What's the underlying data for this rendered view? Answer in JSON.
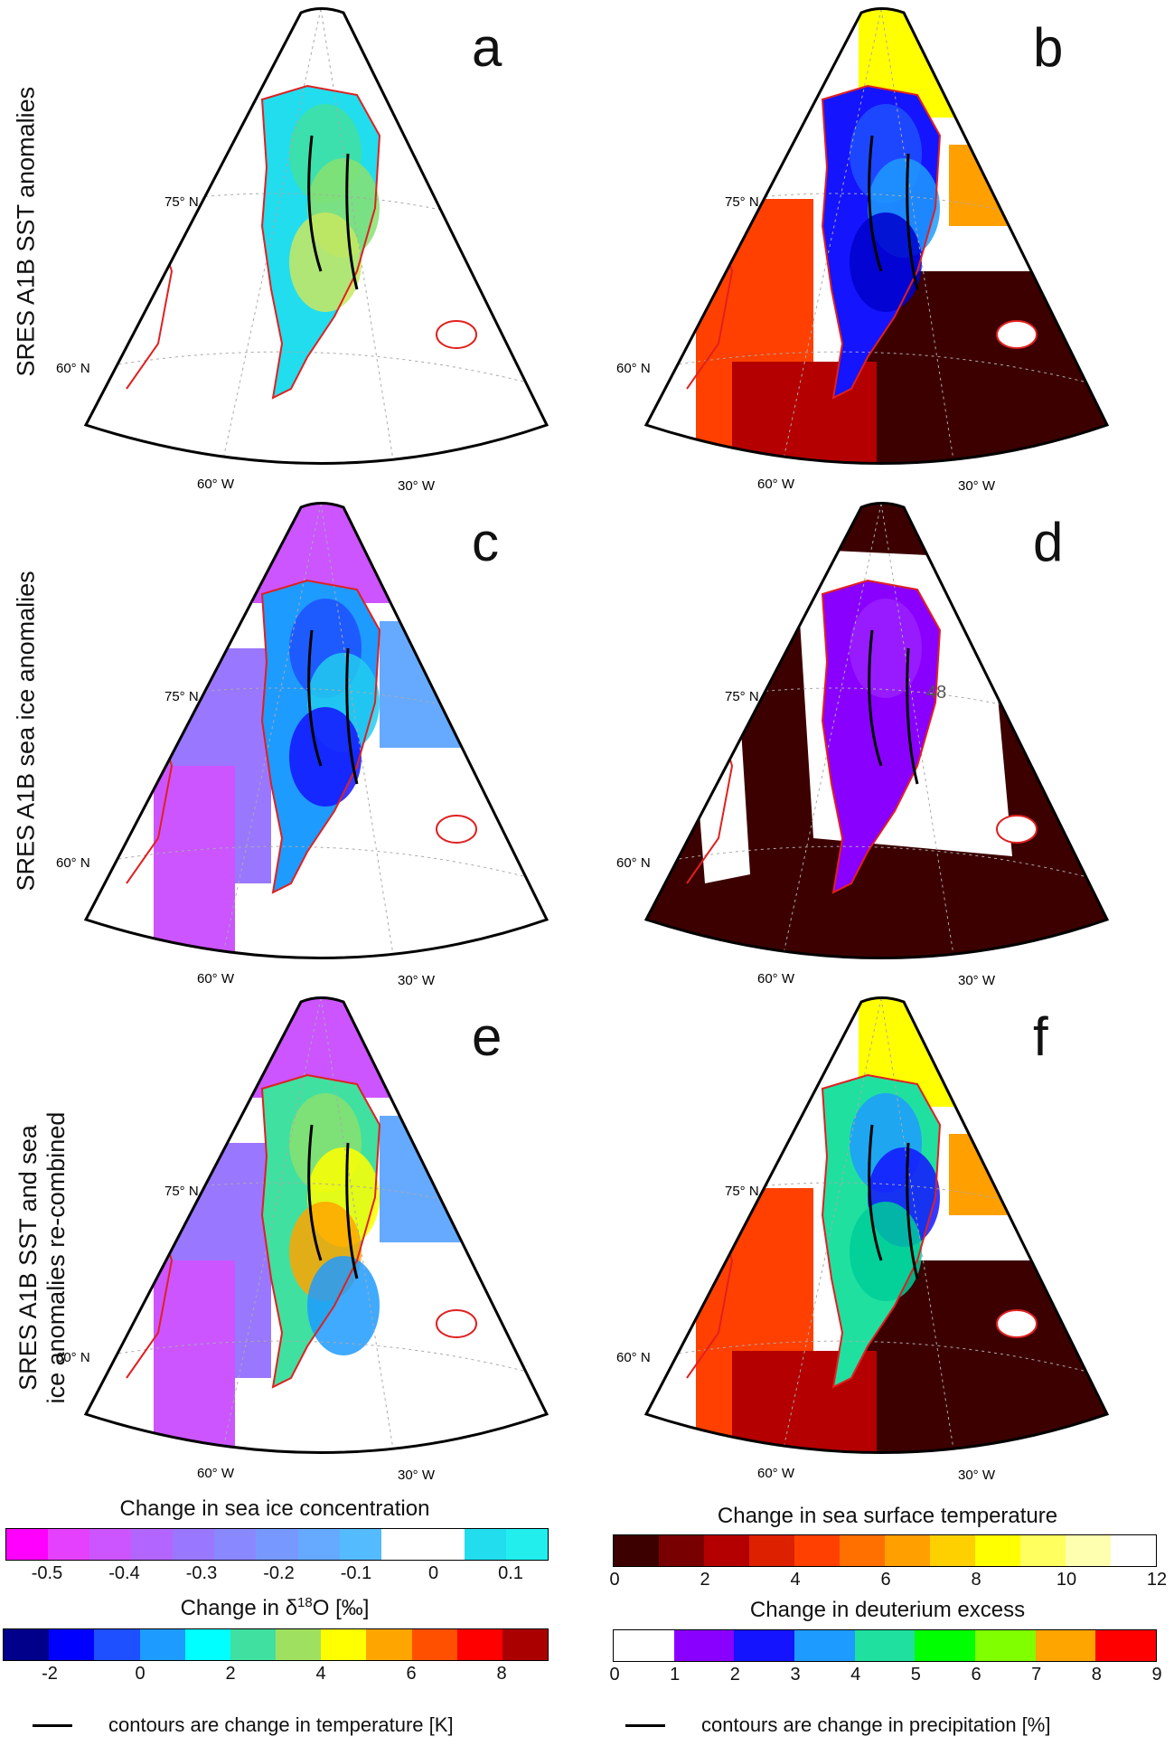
{
  "figure": {
    "row_labels": [
      "SRES A1B SST anomalies",
      "SRES A1B sea ice anomalies",
      [
        "SRES A1B SST and sea",
        "ice anomalies re-combined"
      ]
    ],
    "panels": [
      {
        "letter": "a",
        "field": "d18O",
        "lat_labels": [
          "75° N",
          "60° N"
        ],
        "lon_labels": [
          "60° W",
          "30° W"
        ]
      },
      {
        "letter": "b",
        "field": "dexcess_sst",
        "lat_labels": [
          "75° N",
          "60° N"
        ],
        "lon_labels": [
          "60° W",
          "30° W"
        ]
      },
      {
        "letter": "c",
        "field": "d18O_seaice",
        "lat_labels": [
          "75° N",
          "60° N"
        ],
        "lon_labels": [
          "60° W",
          "30° W"
        ]
      },
      {
        "letter": "d",
        "field": "dexcess_seaice",
        "lat_labels": [
          "75° N",
          "60° N"
        ],
        "lon_labels": [
          "60° W",
          "30° W"
        ],
        "contour_label": "48"
      },
      {
        "letter": "e",
        "field": "d18O_combined",
        "lat_labels": [
          "75° N",
          "60° N"
        ],
        "lon_labels": [
          "60° W",
          "30° W"
        ]
      },
      {
        "letter": "f",
        "field": "dexcess_combined",
        "lat_labels": [
          "75° N",
          "60° N"
        ],
        "lon_labels": [
          "60° W",
          "30° W"
        ]
      }
    ]
  },
  "colorbars": {
    "sea_ice": {
      "title": "Change in sea ice concentration",
      "ticks": [
        "-0.5",
        "-0.4",
        "-0.3",
        "-0.2",
        "-0.1",
        "0",
        "0.1"
      ],
      "colors": [
        "#ff00ff",
        "#e640ff",
        "#cc55ff",
        "#b366ff",
        "#9a77ff",
        "#8a88ff",
        "#7799ff",
        "#66aaff",
        "#55bbff",
        "#ffffff",
        "#ffffff",
        "#22ddee",
        "#22eeee"
      ]
    },
    "d18o": {
      "title_prefix": "Change in ",
      "title_delta": "δ",
      "title_sup": "18",
      "title_suffix": "O [‰]",
      "ticks": [
        "-2",
        "0",
        "2",
        "4",
        "6",
        "8"
      ],
      "colors": [
        "#00008b",
        "#0000ff",
        "#1e50ff",
        "#1e9bff",
        "#00ffff",
        "#40e0a0",
        "#a0e060",
        "#ffff00",
        "#ffa500",
        "#ff5000",
        "#ff0000",
        "#aa0000"
      ]
    },
    "sst": {
      "title": "Change in sea surface temperature",
      "ticks": [
        "0",
        "2",
        "4",
        "6",
        "8",
        "10",
        "12"
      ],
      "colors": [
        "#3c0000",
        "#780000",
        "#b40000",
        "#dc2000",
        "#ff4000",
        "#ff7000",
        "#ff9f00",
        "#ffd000",
        "#ffff00",
        "#ffff60",
        "#ffffb0",
        "#ffffff"
      ]
    },
    "dexcess": {
      "title": "Change in deuterium excess",
      "ticks": [
        "0",
        "1",
        "2",
        "3",
        "4",
        "5",
        "6",
        "7",
        "8",
        "9"
      ],
      "colors": [
        "#ffffff",
        "#8a00ff",
        "#1414ff",
        "#1e9bff",
        "#20e0a0",
        "#00ff00",
        "#80ff00",
        "#ffa500",
        "#ff0000"
      ]
    }
  },
  "legend_notes": {
    "left": "contours are change in temperature [K]",
    "right": "contours are change in precipitation [%]"
  }
}
